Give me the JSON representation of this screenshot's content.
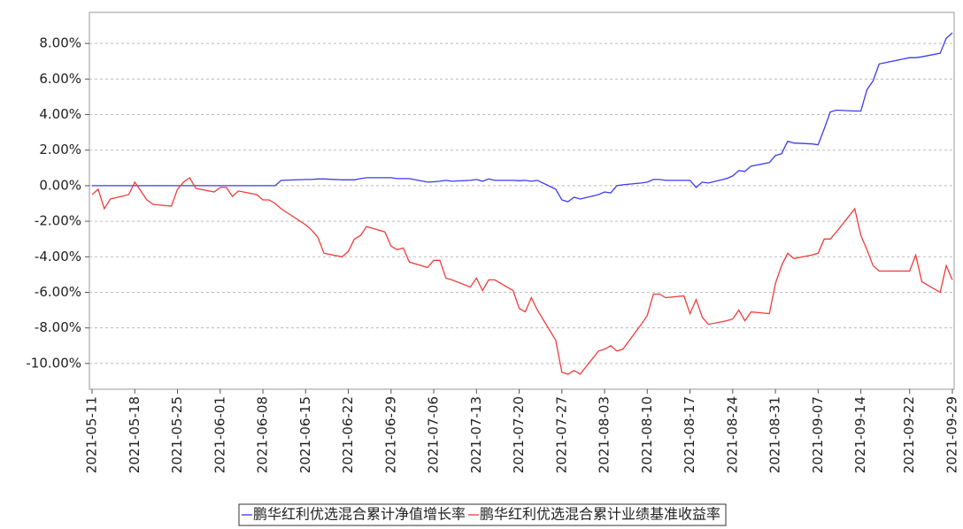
{
  "chart_data": {
    "type": "line",
    "x": [
      "2021-05-11",
      "2021-05-12",
      "2021-05-13",
      "2021-05-14",
      "2021-05-17",
      "2021-05-18",
      "2021-05-19",
      "2021-05-20",
      "2021-05-21",
      "2021-05-24",
      "2021-05-25",
      "2021-05-26",
      "2021-05-27",
      "2021-05-28",
      "2021-05-31",
      "2021-06-01",
      "2021-06-02",
      "2021-06-03",
      "2021-06-04",
      "2021-06-07",
      "2021-06-08",
      "2021-06-09",
      "2021-06-10",
      "2021-06-11",
      "2021-06-15",
      "2021-06-16",
      "2021-06-17",
      "2021-06-18",
      "2021-06-21",
      "2021-06-22",
      "2021-06-23",
      "2021-06-24",
      "2021-06-25",
      "2021-06-28",
      "2021-06-29",
      "2021-06-30",
      "2021-07-01",
      "2021-07-02",
      "2021-07-05",
      "2021-07-06",
      "2021-07-07",
      "2021-07-08",
      "2021-07-09",
      "2021-07-12",
      "2021-07-13",
      "2021-07-14",
      "2021-07-15",
      "2021-07-16",
      "2021-07-19",
      "2021-07-20",
      "2021-07-21",
      "2021-07-22",
      "2021-07-23",
      "2021-07-26",
      "2021-07-27",
      "2021-07-28",
      "2021-07-29",
      "2021-07-30",
      "2021-08-02",
      "2021-08-03",
      "2021-08-04",
      "2021-08-05",
      "2021-08-06",
      "2021-08-09",
      "2021-08-10",
      "2021-08-11",
      "2021-08-12",
      "2021-08-13",
      "2021-08-16",
      "2021-08-17",
      "2021-08-18",
      "2021-08-19",
      "2021-08-20",
      "2021-08-23",
      "2021-08-24",
      "2021-08-25",
      "2021-08-26",
      "2021-08-27",
      "2021-08-30",
      "2021-08-31",
      "2021-09-01",
      "2021-09-02",
      "2021-09-03",
      "2021-09-06",
      "2021-09-07",
      "2021-09-08",
      "2021-09-09",
      "2021-09-10",
      "2021-09-13",
      "2021-09-14",
      "2021-09-15",
      "2021-09-16",
      "2021-09-17",
      "2021-09-22",
      "2021-09-23",
      "2021-09-24",
      "2021-09-27",
      "2021-09-28",
      "2021-09-29"
    ],
    "series": [
      {
        "name": "鹏华红利优选混合累计净值增长率",
        "color": "#3b3bf0",
        "values": [
          0,
          0,
          0,
          0,
          0,
          0,
          0,
          0,
          0,
          0,
          0,
          0,
          0,
          0,
          0,
          0,
          0,
          0,
          0,
          0,
          0,
          0,
          0,
          0.3,
          0.35,
          0.35,
          0.38,
          0.38,
          0.33,
          0.33,
          0.33,
          0.4,
          0.45,
          0.45,
          0.45,
          0.4,
          0.4,
          0.4,
          0.2,
          0.22,
          0.25,
          0.3,
          0.25,
          0.3,
          0.35,
          0.25,
          0.38,
          0.3,
          0.3,
          0.28,
          0.3,
          0.25,
          0.3,
          -0.2,
          -0.8,
          -0.9,
          -0.65,
          -0.75,
          -0.5,
          -0.35,
          -0.4,
          0.0,
          0.05,
          0.15,
          0.2,
          0.35,
          0.35,
          0.3,
          0.3,
          0.3,
          -0.1,
          0.2,
          0.15,
          0.4,
          0.55,
          0.85,
          0.8,
          1.1,
          1.3,
          1.7,
          1.8,
          2.5,
          2.4,
          2.35,
          2.3,
          3.2,
          4.15,
          4.25,
          4.2,
          4.2,
          5.4,
          5.9,
          6.85,
          7.2,
          7.2,
          7.25,
          7.45,
          8.3,
          8.6
        ]
      },
      {
        "name": "鹏华红利优选混合累计业绩基准收益率",
        "color": "#f03b3b",
        "values": [
          -0.5,
          -0.2,
          -1.3,
          -0.75,
          -0.5,
          0.2,
          -0.3,
          -0.8,
          -1.05,
          -1.15,
          -0.2,
          0.2,
          0.45,
          -0.15,
          -0.35,
          -0.1,
          -0.1,
          -0.6,
          -0.3,
          -0.5,
          -0.8,
          -0.8,
          -1.0,
          -1.3,
          -2.2,
          -2.5,
          -2.9,
          -3.8,
          -4.0,
          -3.7,
          -3.0,
          -2.8,
          -2.3,
          -2.6,
          -3.4,
          -3.6,
          -3.5,
          -4.3,
          -4.6,
          -4.2,
          -4.2,
          -5.2,
          -5.3,
          -5.7,
          -5.2,
          -5.9,
          -5.3,
          -5.3,
          -5.9,
          -6.9,
          -7.1,
          -6.3,
          -7.0,
          -8.7,
          -10.5,
          -10.6,
          -10.4,
          -10.6,
          -9.3,
          -9.2,
          -9.0,
          -9.3,
          -9.2,
          -7.8,
          -7.3,
          -6.1,
          -6.1,
          -6.3,
          -6.2,
          -7.2,
          -6.4,
          -7.4,
          -7.8,
          -7.6,
          -7.5,
          -7.0,
          -7.6,
          -7.1,
          -7.2,
          -5.5,
          -4.5,
          -3.8,
          -4.1,
          -3.9,
          -3.8,
          -3.0,
          -3.0,
          -2.6,
          -1.3,
          -2.8,
          -3.6,
          -4.5,
          -4.8,
          -4.8,
          -3.9,
          -5.4,
          -6.0,
          -4.5,
          -5.3
        ]
      }
    ],
    "xlim": [
      "2021-05-11",
      "2021-09-29"
    ],
    "xticks": [
      "2021-05-11",
      "2021-05-18",
      "2021-05-25",
      "2021-06-01",
      "2021-06-08",
      "2021-06-15",
      "2021-06-22",
      "2021-06-29",
      "2021-07-06",
      "2021-07-13",
      "2021-07-20",
      "2021-07-27",
      "2021-08-03",
      "2021-08-10",
      "2021-08-17",
      "2021-08-24",
      "2021-08-31",
      "2021-09-07",
      "2021-09-14",
      "2021-09-22",
      "2021-09-29"
    ],
    "ylim": [
      -11.45,
      9.75
    ],
    "yticks": [
      {
        "value": 8,
        "label": "8.00%"
      },
      {
        "value": 6,
        "label": "6.00%"
      },
      {
        "value": 4,
        "label": "4.00%"
      },
      {
        "value": 2,
        "label": "2.00%"
      },
      {
        "value": 0,
        "label": "0.00%"
      },
      {
        "value": -2,
        "label": "-2.00%"
      },
      {
        "value": -4,
        "label": "-4.00%"
      },
      {
        "value": -6,
        "label": "-6.00%"
      },
      {
        "value": -8,
        "label": "-8.00%"
      },
      {
        "value": -10,
        "label": "-10.00%"
      }
    ],
    "grid": true,
    "legend": "bottom"
  }
}
